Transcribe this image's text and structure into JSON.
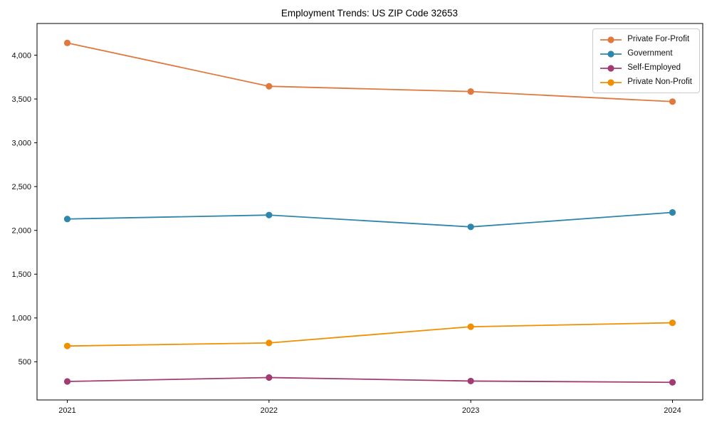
{
  "chart_data": {
    "type": "line",
    "title": "Employment Trends: US ZIP Code 32653",
    "xlabel": "",
    "ylabel": "",
    "x": [
      2021,
      2022,
      2023,
      2024
    ],
    "x_tick_labels": [
      "2021",
      "2022",
      "2023",
      "2024"
    ],
    "series": [
      {
        "name": "Private For-Profit",
        "color": "#E0793E",
        "values": [
          4140,
          3645,
          3585,
          3470
        ]
      },
      {
        "name": "Government",
        "color": "#2E86AB",
        "values": [
          2130,
          2175,
          2040,
          2205
        ]
      },
      {
        "name": "Self-Employed",
        "color": "#A23B72",
        "values": [
          275,
          320,
          280,
          265
        ]
      },
      {
        "name": "Private Non-Profit",
        "color": "#F18F01",
        "values": [
          680,
          715,
          900,
          945
        ]
      }
    ],
    "yticks": [
      500,
      1000,
      1500,
      2000,
      2500,
      3000,
      3500,
      4000
    ],
    "ytick_labels": [
      "500",
      "1,000",
      "1,500",
      "2,000",
      "2,500",
      "3,000",
      "3,500",
      "4,000"
    ],
    "xlim": [
      2020.85,
      2024.15
    ],
    "ylim": [
      64,
      4362
    ],
    "grid": false,
    "legend_position": "upper right"
  }
}
